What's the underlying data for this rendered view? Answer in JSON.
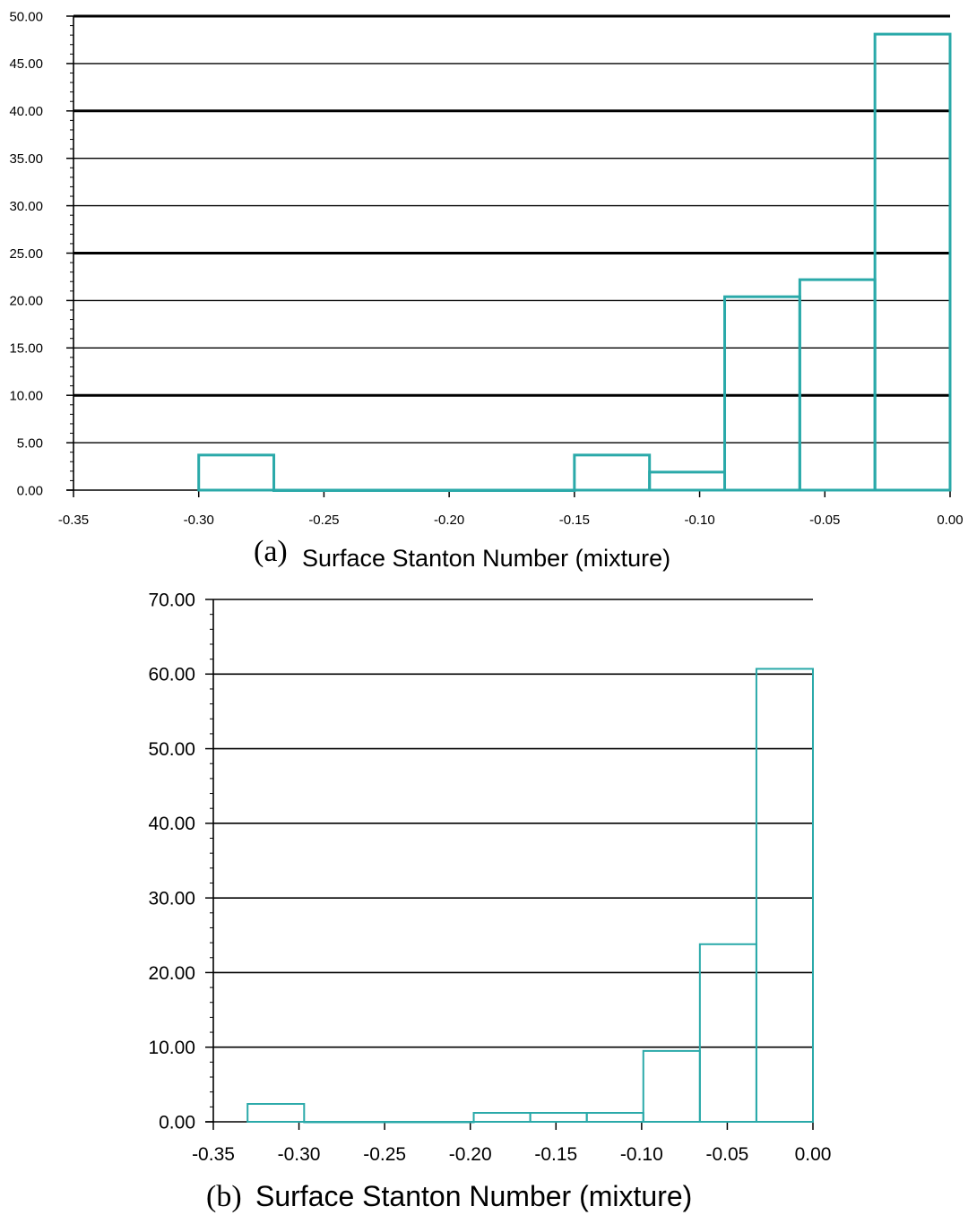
{
  "chart_data": [
    {
      "type": "bar",
      "panel_label": "(a)",
      "xlabel": "Surface Stanton Number (mixture)",
      "ylabel": "",
      "xlim": [
        -0.35,
        0.0
      ],
      "ylim": [
        0,
        50
      ],
      "x_ticks": [
        "-0.35",
        "-0.30",
        "-0.25",
        "-0.20",
        "-0.15",
        "-0.10",
        "-0.05",
        "0.00"
      ],
      "y_ticks": [
        "0.00",
        "5.00",
        "10.00",
        "15.00",
        "20.00",
        "25.00",
        "30.00",
        "35.00",
        "40.00",
        "45.00",
        "50.00"
      ],
      "bin_edges": [
        -0.3,
        -0.27,
        -0.24,
        -0.21,
        -0.18,
        -0.15,
        -0.12,
        -0.09,
        -0.06,
        -0.03,
        0.0
      ],
      "values": [
        3.7,
        0,
        0,
        0,
        0,
        3.7,
        1.9,
        20.4,
        22.2,
        48.1
      ],
      "grid": true,
      "bar_color": "#2aa9a9"
    },
    {
      "type": "bar",
      "panel_label": "(b)",
      "xlabel": "Surface Stanton Number (mixture)",
      "ylabel": "",
      "xlim": [
        -0.35,
        0.0
      ],
      "ylim": [
        0,
        70
      ],
      "x_ticks": [
        "-0.35",
        "-0.30",
        "-0.25",
        "-0.20",
        "-0.15",
        "-0.10",
        "-0.05",
        "0.00"
      ],
      "y_ticks": [
        "0.00",
        "10.00",
        "20.00",
        "30.00",
        "40.00",
        "50.00",
        "60.00",
        "70.00"
      ],
      "bin_edges": [
        -0.33,
        -0.297,
        -0.264,
        -0.231,
        -0.198,
        -0.165,
        -0.132,
        -0.099,
        -0.066,
        -0.033,
        0.0
      ],
      "values": [
        2.4,
        0,
        0,
        0,
        1.2,
        1.2,
        1.2,
        9.5,
        23.8,
        60.7
      ],
      "grid": true,
      "bar_color": "#2aa9a9"
    }
  ]
}
